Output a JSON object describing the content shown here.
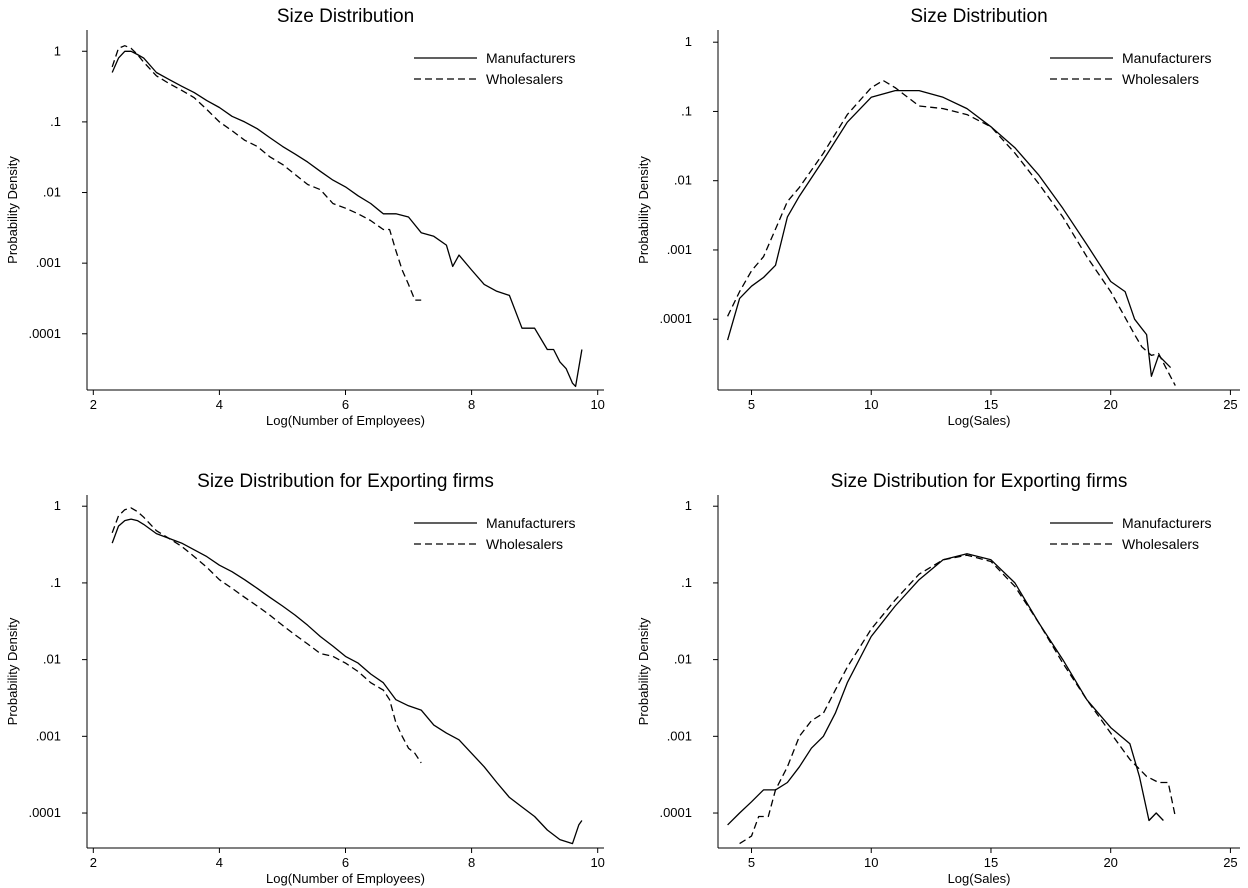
{
  "chart_data": [
    {
      "type": "line",
      "title": "Size Distribution",
      "xlabel": "Log(Number of Employees)",
      "ylabel": "Probability Density",
      "xlim": [
        1.9,
        10.1
      ],
      "xticks": [
        2,
        4,
        6,
        8,
        10
      ],
      "xtick_labels": [
        "2",
        "4",
        "6",
        "8",
        "10"
      ],
      "y_scale": "log",
      "ylim": [
        1.6e-05,
        2.0
      ],
      "yticks": [
        1,
        0.1,
        0.01,
        0.001,
        0.0001
      ],
      "ytick_labels": [
        "1",
        ".1",
        ".01",
        ".001",
        ".0001"
      ],
      "legend_position": "top-right",
      "grid": false,
      "series": [
        {
          "name": "Manufacturers",
          "dash": "solid",
          "x": [
            2.3,
            2.4,
            2.5,
            2.6,
            2.7,
            2.8,
            3.0,
            3.2,
            3.4,
            3.6,
            3.8,
            4.0,
            4.2,
            4.4,
            4.6,
            4.8,
            5.0,
            5.2,
            5.4,
            5.6,
            5.8,
            6.0,
            6.2,
            6.4,
            6.6,
            6.8,
            7.0,
            7.2,
            7.4,
            7.6,
            7.7,
            7.8,
            8.0,
            8.2,
            8.4,
            8.6,
            8.8,
            9.0,
            9.2,
            9.3,
            9.4,
            9.5,
            9.6,
            9.65,
            9.75
          ],
          "y": [
            0.5,
            0.8,
            1.0,
            1.0,
            0.9,
            0.8,
            0.5,
            0.4,
            0.32,
            0.26,
            0.2,
            0.16,
            0.12,
            0.1,
            0.08,
            0.06,
            0.045,
            0.035,
            0.027,
            0.02,
            0.015,
            0.012,
            0.009,
            0.007,
            0.005,
            0.005,
            0.0045,
            0.0027,
            0.0024,
            0.0018,
            0.0009,
            0.0013,
            0.0008,
            0.0005,
            0.0004,
            0.00035,
            0.00012,
            0.00012,
            6e-05,
            6e-05,
            4e-05,
            3.2e-05,
            2e-05,
            1.8e-05,
            6e-05
          ]
        },
        {
          "name": "Wholesalers",
          "dash": "dashed",
          "x": [
            2.3,
            2.4,
            2.5,
            2.6,
            2.7,
            2.8,
            3.0,
            3.2,
            3.4,
            3.6,
            3.8,
            4.0,
            4.2,
            4.4,
            4.6,
            4.8,
            5.0,
            5.2,
            5.4,
            5.6,
            5.8,
            6.0,
            6.2,
            6.4,
            6.6,
            6.7,
            6.8,
            6.9,
            7.0,
            7.1,
            7.2
          ],
          "y": [
            0.6,
            1.1,
            1.2,
            1.1,
            0.9,
            0.7,
            0.45,
            0.35,
            0.28,
            0.22,
            0.15,
            0.1,
            0.075,
            0.055,
            0.045,
            0.032,
            0.025,
            0.018,
            0.013,
            0.011,
            0.007,
            0.006,
            0.005,
            0.004,
            0.003,
            0.003,
            0.0015,
            0.0008,
            0.0005,
            0.0003,
            0.0003
          ]
        }
      ]
    },
    {
      "type": "line",
      "title": "Size Distribution",
      "xlabel": "Log(Sales)",
      "ylabel": "Probability Density",
      "xlim": [
        3.6,
        25.4
      ],
      "xticks": [
        5,
        10,
        15,
        20,
        25
      ],
      "xtick_labels": [
        "5",
        "10",
        "15",
        "20",
        "25"
      ],
      "y_scale": "log",
      "ylim": [
        9.5e-06,
        1.5
      ],
      "yticks": [
        1,
        0.1,
        0.01,
        0.001,
        0.0001
      ],
      "ytick_labels": [
        "1",
        ".1",
        ".01",
        ".001",
        ".0001"
      ],
      "legend_position": "top-right",
      "grid": false,
      "series": [
        {
          "name": "Manufacturers",
          "dash": "solid",
          "x": [
            4.0,
            4.5,
            5.0,
            5.5,
            6.0,
            6.5,
            7.0,
            8.0,
            9.0,
            10.0,
            11.0,
            12.0,
            13.0,
            14.0,
            15.0,
            16.0,
            17.0,
            18.0,
            19.0,
            20.0,
            20.6,
            21.0,
            21.5,
            21.7,
            22.0,
            22.5
          ],
          "y": [
            5e-05,
            0.0002,
            0.0003,
            0.0004,
            0.0006,
            0.003,
            0.006,
            0.02,
            0.07,
            0.16,
            0.2,
            0.2,
            0.16,
            0.11,
            0.06,
            0.03,
            0.012,
            0.004,
            0.0012,
            0.00035,
            0.00025,
            0.0001,
            6e-05,
            1.5e-05,
            3e-05,
            2e-05
          ]
        },
        {
          "name": "Wholesalers",
          "dash": "dashed",
          "x": [
            4.0,
            4.5,
            5.0,
            5.5,
            6.0,
            6.5,
            7.0,
            8.0,
            9.0,
            10.0,
            10.5,
            11.0,
            12.0,
            13.0,
            14.0,
            15.0,
            16.0,
            17.0,
            18.0,
            19.0,
            20.0,
            21.0,
            21.3,
            21.7,
            22.0,
            22.3,
            22.7
          ],
          "y": [
            0.00011,
            0.00025,
            0.0005,
            0.0008,
            0.002,
            0.005,
            0.008,
            0.025,
            0.09,
            0.22,
            0.28,
            0.22,
            0.12,
            0.11,
            0.09,
            0.06,
            0.025,
            0.009,
            0.003,
            0.0008,
            0.00025,
            6e-05,
            4e-05,
            3e-05,
            3.2e-05,
            2e-05,
            1.1e-05
          ]
        }
      ]
    },
    {
      "type": "line",
      "title": "Size Distribution for Exporting firms",
      "xlabel": "Log(Number of Employees)",
      "ylabel": "Probability Density",
      "xlim": [
        1.9,
        10.1
      ],
      "xticks": [
        2,
        4,
        6,
        8,
        10
      ],
      "xtick_labels": [
        "2",
        "4",
        "6",
        "8",
        "10"
      ],
      "y_scale": "log",
      "ylim": [
        3.5e-05,
        1.4
      ],
      "yticks": [
        1,
        0.1,
        0.01,
        0.001,
        0.0001
      ],
      "ytick_labels": [
        "1",
        ".1",
        ".01",
        ".001",
        ".0001"
      ],
      "legend_position": "top-right",
      "grid": false,
      "series": [
        {
          "name": "Manufacturers",
          "dash": "solid",
          "x": [
            2.3,
            2.4,
            2.5,
            2.6,
            2.7,
            2.8,
            3.0,
            3.2,
            3.4,
            3.6,
            3.8,
            4.0,
            4.2,
            4.4,
            4.6,
            4.8,
            5.0,
            5.2,
            5.4,
            5.6,
            5.8,
            6.0,
            6.2,
            6.4,
            6.6,
            6.8,
            7.0,
            7.2,
            7.4,
            7.6,
            7.8,
            8.0,
            8.2,
            8.4,
            8.6,
            8.8,
            9.0,
            9.2,
            9.4,
            9.6,
            9.7,
            9.75
          ],
          "y": [
            0.33,
            0.55,
            0.65,
            0.68,
            0.65,
            0.58,
            0.44,
            0.38,
            0.33,
            0.27,
            0.22,
            0.17,
            0.14,
            0.11,
            0.085,
            0.065,
            0.05,
            0.038,
            0.028,
            0.02,
            0.015,
            0.011,
            0.009,
            0.0065,
            0.005,
            0.003,
            0.0025,
            0.0022,
            0.0014,
            0.0011,
            0.0009,
            0.0006,
            0.0004,
            0.00025,
            0.00016,
            0.00012,
            9e-05,
            6e-05,
            4.5e-05,
            4e-05,
            7e-05,
            8e-05
          ]
        },
        {
          "name": "Wholesalers",
          "dash": "dashed",
          "x": [
            2.3,
            2.4,
            2.5,
            2.6,
            2.7,
            2.8,
            3.0,
            3.2,
            3.4,
            3.6,
            3.8,
            4.0,
            4.2,
            4.4,
            4.6,
            4.8,
            5.0,
            5.2,
            5.4,
            5.6,
            5.8,
            6.0,
            6.2,
            6.4,
            6.6,
            6.7,
            6.8,
            6.9,
            7.0,
            7.1,
            7.2
          ],
          "y": [
            0.45,
            0.75,
            0.9,
            0.95,
            0.85,
            0.72,
            0.48,
            0.38,
            0.3,
            0.22,
            0.16,
            0.11,
            0.085,
            0.065,
            0.05,
            0.038,
            0.028,
            0.021,
            0.016,
            0.012,
            0.011,
            0.009,
            0.007,
            0.005,
            0.004,
            0.003,
            0.0015,
            0.001,
            0.0007,
            0.0006,
            0.00045
          ]
        }
      ]
    },
    {
      "type": "line",
      "title": "Size Distribution for Exporting firms",
      "xlabel": "Log(Sales)",
      "ylabel": "Probability Density",
      "xlim": [
        3.6,
        25.4
      ],
      "xticks": [
        5,
        10,
        15,
        20,
        25
      ],
      "xtick_labels": [
        "5",
        "10",
        "15",
        "20",
        "25"
      ],
      "y_scale": "log",
      "ylim": [
        3.5e-05,
        1.4
      ],
      "yticks": [
        1,
        0.1,
        0.01,
        0.001,
        0.0001
      ],
      "ytick_labels": [
        "1",
        ".1",
        ".01",
        ".001",
        ".0001"
      ],
      "legend_position": "top-right",
      "grid": false,
      "series": [
        {
          "name": "Manufacturers",
          "dash": "solid",
          "x": [
            4.0,
            4.5,
            5.0,
            5.5,
            6.0,
            6.5,
            7.0,
            7.5,
            8.0,
            8.5,
            9.0,
            10.0,
            11.0,
            12.0,
            13.0,
            14.0,
            15.0,
            16.0,
            17.0,
            18.0,
            19.0,
            20.0,
            20.8,
            21.2,
            21.6,
            21.9,
            22.2
          ],
          "y": [
            7e-05,
            0.0001,
            0.00014,
            0.0002,
            0.0002,
            0.00025,
            0.0004,
            0.0007,
            0.001,
            0.002,
            0.005,
            0.02,
            0.05,
            0.11,
            0.2,
            0.24,
            0.2,
            0.1,
            0.03,
            0.01,
            0.003,
            0.0013,
            0.0008,
            0.0003,
            8e-05,
            0.0001,
            8e-05
          ]
        },
        {
          "name": "Wholesalers",
          "dash": "dashed",
          "x": [
            4.5,
            5.0,
            5.3,
            5.7,
            6.0,
            6.5,
            7.0,
            7.5,
            8.0,
            8.5,
            9.0,
            10.0,
            11.0,
            12.0,
            13.0,
            14.0,
            15.0,
            16.0,
            17.0,
            18.0,
            19.0,
            20.0,
            20.8,
            21.5,
            22.0,
            22.4,
            22.7
          ],
          "y": [
            4e-05,
            5e-05,
            9e-05,
            9e-05,
            0.0002,
            0.0004,
            0.001,
            0.0016,
            0.002,
            0.004,
            0.008,
            0.025,
            0.06,
            0.13,
            0.2,
            0.23,
            0.19,
            0.09,
            0.03,
            0.009,
            0.003,
            0.0011,
            0.0005,
            0.0003,
            0.00025,
            0.00025,
            9e-05
          ]
        }
      ]
    }
  ]
}
